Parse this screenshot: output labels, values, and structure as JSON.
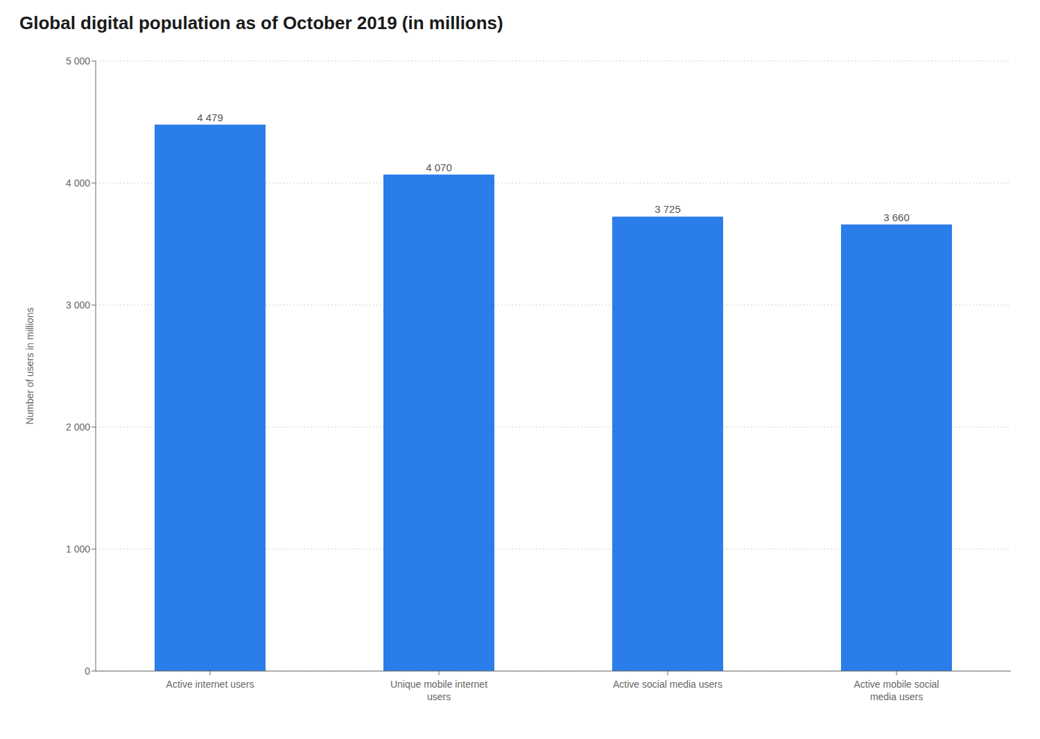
{
  "chart_data": {
    "type": "bar",
    "title": "Global digital population as of October 2019 (in millions)",
    "categories": [
      "Active internet users",
      "Unique mobile internet\nusers",
      "Active social media users",
      "Active mobile social\nmedia users"
    ],
    "values": [
      4479,
      4070,
      3725,
      3660
    ],
    "value_labels": [
      "4 479",
      "4 070",
      "3 725",
      "3 660"
    ],
    "data_labels": true,
    "color": "#2b7de9",
    "ylabel": "Number of users in millions",
    "ylim": [
      0,
      5000
    ],
    "yticks": [
      0,
      {
        "value": 1000,
        "label": "1 000"
      },
      {
        "value": 2000,
        "label": "2 000"
      },
      {
        "value": 3000,
        "label": "3 000"
      },
      {
        "value": 4000,
        "label": "4 000"
      },
      {
        "value": 5000,
        "label": "5 000"
      }
    ],
    "grid": true
  }
}
